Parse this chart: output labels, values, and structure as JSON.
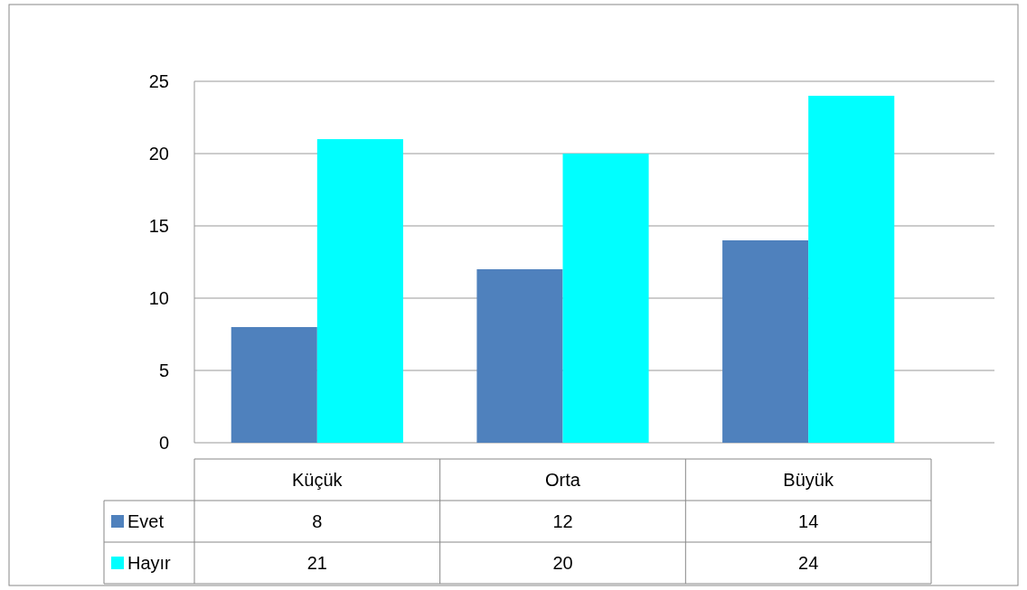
{
  "chart_data": {
    "type": "bar",
    "categories": [
      "Küçük",
      "Orta",
      "Büyük"
    ],
    "series": [
      {
        "name": "Evet",
        "color": "#4f81bd",
        "values": [
          8,
          12,
          14
        ]
      },
      {
        "name": "Hayır",
        "color": "#00ffff",
        "values": [
          21,
          20,
          24
        ]
      }
    ],
    "ylim": [
      0,
      25
    ],
    "yticks": [
      0,
      5,
      10,
      15,
      20,
      25
    ],
    "grid": "y",
    "data_labels": true,
    "legend": "bottom"
  }
}
